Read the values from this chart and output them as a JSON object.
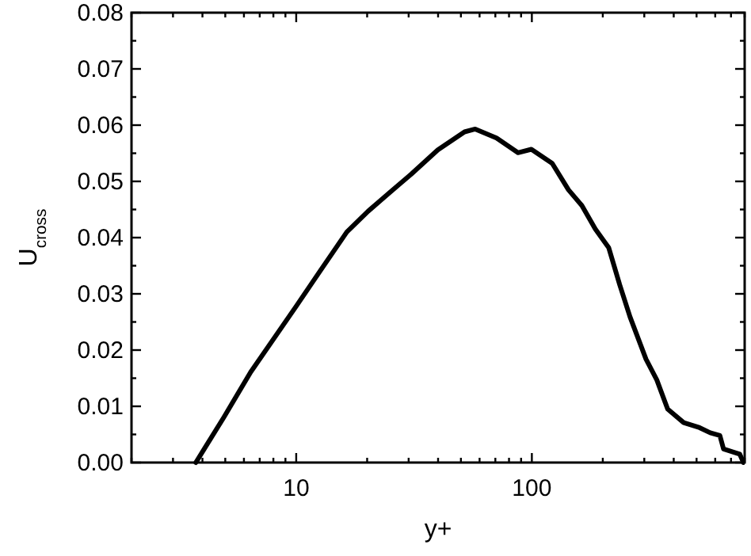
{
  "chart_data": {
    "type": "line",
    "xlabel": "y+",
    "ylabel": "U$_{cross}$",
    "log": "x",
    "xlim": [
      2,
      800
    ],
    "ylim": [
      0,
      0.08
    ],
    "xticks": [
      {
        "value": 2,
        "label": null
      },
      {
        "value": 3,
        "label": null
      },
      {
        "value": 4,
        "label": null
      },
      {
        "value": 5,
        "label": null
      },
      {
        "value": 6,
        "label": null
      },
      {
        "value": 7,
        "label": null
      },
      {
        "value": 8,
        "label": null
      },
      {
        "value": 9,
        "label": null
      },
      10,
      {
        "value": 20,
        "label": null
      },
      {
        "value": 30,
        "label": null
      },
      {
        "value": 40,
        "label": null
      },
      {
        "value": 50,
        "label": null
      },
      {
        "value": 60,
        "label": null
      },
      {
        "value": 70,
        "label": null
      },
      {
        "value": 80,
        "label": null
      },
      {
        "value": 90,
        "label": null
      },
      100,
      {
        "value": 200,
        "label": null
      },
      {
        "value": 300,
        "label": null
      },
      {
        "value": 400,
        "label": null
      },
      {
        "value": 500,
        "label": null
      },
      {
        "value": 600,
        "label": null
      },
      {
        "value": 700,
        "label": null
      },
      {
        "value": 800,
        "label": null
      }
    ],
    "yticks": [
      {
        "value": 0,
        "label": "0.00"
      },
      {
        "value": 0.005,
        "label": null
      },
      {
        "value": 0.01,
        "label": "0.01"
      },
      {
        "value": 0.015,
        "label": null
      },
      {
        "value": 0.02,
        "label": "0.02"
      },
      {
        "value": 0.025,
        "label": null
      },
      {
        "value": 0.03,
        "label": "0.03"
      },
      {
        "value": 0.035,
        "label": null
      },
      {
        "value": 0.04,
        "label": "0.04"
      },
      {
        "value": 0.045,
        "label": null
      },
      {
        "value": 0.05,
        "label": "0.05"
      },
      {
        "value": 0.055,
        "label": null
      },
      {
        "value": 0.06,
        "label": "0.06"
      },
      {
        "value": 0.065,
        "label": null
      },
      {
        "value": 0.07,
        "label": "0.07"
      },
      {
        "value": 0.075,
        "label": null
      },
      {
        "value": 0.08,
        "label": "0.08"
      }
    ],
    "grid": false,
    "marker": "none",
    "line_style": "solid",
    "series": [
      {
        "color": "#000000",
        "x": [
          3.75,
          4.94,
          6.41,
          10,
          12.6,
          16.4,
          20.2,
          24.9,
          30.8,
          39.9,
          51.8,
          57.5,
          70.8,
          87.3,
          99.5,
          122,
          143,
          163,
          186,
          212,
          236,
          261,
          305,
          339,
          377,
          441,
          515,
          571,
          628,
          651,
          762,
          791
        ],
        "values": [
          0,
          0.0081,
          0.0161,
          0.0278,
          0.034,
          0.041,
          0.0447,
          0.048,
          0.0513,
          0.0556,
          0.0588,
          0.0593,
          0.0577,
          0.0551,
          0.0557,
          0.0532,
          0.0485,
          0.0457,
          0.0415,
          0.0382,
          0.0316,
          0.0259,
          0.0184,
          0.0147,
          0.0095,
          0.0071,
          0.0062,
          0.0053,
          0.0048,
          0.0024,
          0.0015,
          0
        ]
      }
    ]
  }
}
